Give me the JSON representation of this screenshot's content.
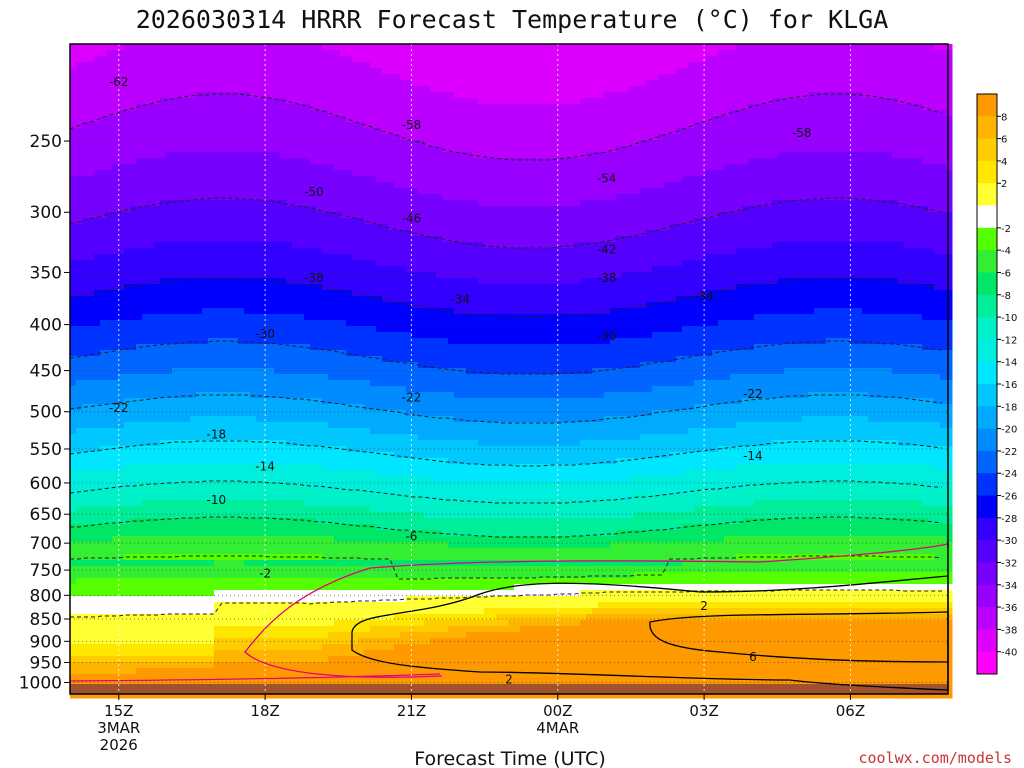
{
  "chart_data": {
    "type": "heatmap",
    "title": "2026030314 HRRR Forecast Temperature (°C) for KLGA",
    "xlabel": "Forecast Time (UTC)",
    "ylabel": "",
    "y_scale": "log-pressure",
    "ylim": [
      1030,
      195
    ],
    "xlim": [
      "2026-03-03T14:00Z",
      "2026-03-04T08:00Z"
    ],
    "x_ticks": [
      {
        "t": "2026-03-03T15:00Z",
        "lines": [
          "15Z",
          "3MAR",
          "2026"
        ]
      },
      {
        "t": "2026-03-03T18:00Z",
        "lines": [
          "18Z"
        ]
      },
      {
        "t": "2026-03-03T21:00Z",
        "lines": [
          "21Z"
        ]
      },
      {
        "t": "2026-03-04T00:00Z",
        "lines": [
          "00Z",
          "4MAR"
        ]
      },
      {
        "t": "2026-03-04T03:00Z",
        "lines": [
          "03Z"
        ]
      },
      {
        "t": "2026-03-04T06:00Z",
        "lines": [
          "06Z"
        ]
      }
    ],
    "y_ticks": [
      250,
      300,
      350,
      400,
      450,
      500,
      550,
      600,
      650,
      700,
      750,
      800,
      850,
      900,
      950,
      1000
    ],
    "grid": true,
    "colorbar": {
      "placement": "right",
      "ticks": [
        8,
        6,
        4,
        2,
        -2,
        -4,
        -6,
        -8,
        -10,
        -12,
        -14,
        -16,
        -18,
        -20,
        -22,
        -24,
        -26,
        -28,
        -30,
        -32,
        -34,
        -36,
        -38,
        -40
      ],
      "colors": [
        "#ff9900",
        "#ffb400",
        "#ffcc00",
        "#ffe600",
        "#ffff33",
        "#ffffff",
        "#55ff00",
        "#33ee33",
        "#00e666",
        "#00ee99",
        "#00f0c8",
        "#00eedd",
        "#00e6ff",
        "#00c8ff",
        "#00aaff",
        "#008cff",
        "#0066ff",
        "#0033ff",
        "#0000ff",
        "#3300ff",
        "#5500ff",
        "#7700ff",
        "#9900ff",
        "#bb00ff",
        "#dd00ff",
        "#ff00ff"
      ]
    },
    "isotherm_labels": [
      {
        "t": "2026-03-03T15:00Z",
        "p": 215,
        "text": "-62"
      },
      {
        "t": "2026-03-03T21:00Z",
        "p": 240,
        "text": "-58"
      },
      {
        "t": "2026-03-04T05:00Z",
        "p": 245,
        "text": "-58"
      },
      {
        "t": "2026-03-04T01:00Z",
        "p": 275,
        "text": "-54"
      },
      {
        "t": "2026-03-03T19:00Z",
        "p": 285,
        "text": "-50"
      },
      {
        "t": "2026-03-03T21:00Z",
        "p": 305,
        "text": "-46"
      },
      {
        "t": "2026-03-04T01:00Z",
        "p": 330,
        "text": "-42"
      },
      {
        "t": "2026-03-03T19:00Z",
        "p": 355,
        "text": "-38"
      },
      {
        "t": "2026-03-04T01:00Z",
        "p": 355,
        "text": "-38"
      },
      {
        "t": "2026-03-03T22:00Z",
        "p": 375,
        "text": "-34"
      },
      {
        "t": "2026-03-04T03:00Z",
        "p": 372,
        "text": "-34"
      },
      {
        "t": "2026-03-03T18:00Z",
        "p": 410,
        "text": "-30"
      },
      {
        "t": "2026-03-04T01:00Z",
        "p": 412,
        "text": "-30"
      },
      {
        "t": "2026-03-03T21:00Z",
        "p": 482,
        "text": "-22"
      },
      {
        "t": "2026-03-03T15:00Z",
        "p": 495,
        "text": "-22"
      },
      {
        "t": "2026-03-04T04:00Z",
        "p": 478,
        "text": "-22"
      },
      {
        "t": "2026-03-03T17:00Z",
        "p": 530,
        "text": "-18"
      },
      {
        "t": "2026-03-03T18:00Z",
        "p": 575,
        "text": "-14"
      },
      {
        "t": "2026-03-04T04:00Z",
        "p": 560,
        "text": "-14"
      },
      {
        "t": "2026-03-03T17:00Z",
        "p": 627,
        "text": "-10"
      },
      {
        "t": "2026-03-03T21:00Z",
        "p": 688,
        "text": "-6"
      },
      {
        "t": "2026-03-03T18:00Z",
        "p": 757,
        "text": "-2"
      },
      {
        "t": "2026-03-04T03:00Z",
        "p": 822,
        "text": "2"
      },
      {
        "t": "2026-03-03T23:00Z",
        "p": 993,
        "text": "2"
      },
      {
        "t": "2026-03-04T04:00Z",
        "p": 937,
        "text": "6"
      }
    ],
    "credit": "coolwx.com/models"
  }
}
